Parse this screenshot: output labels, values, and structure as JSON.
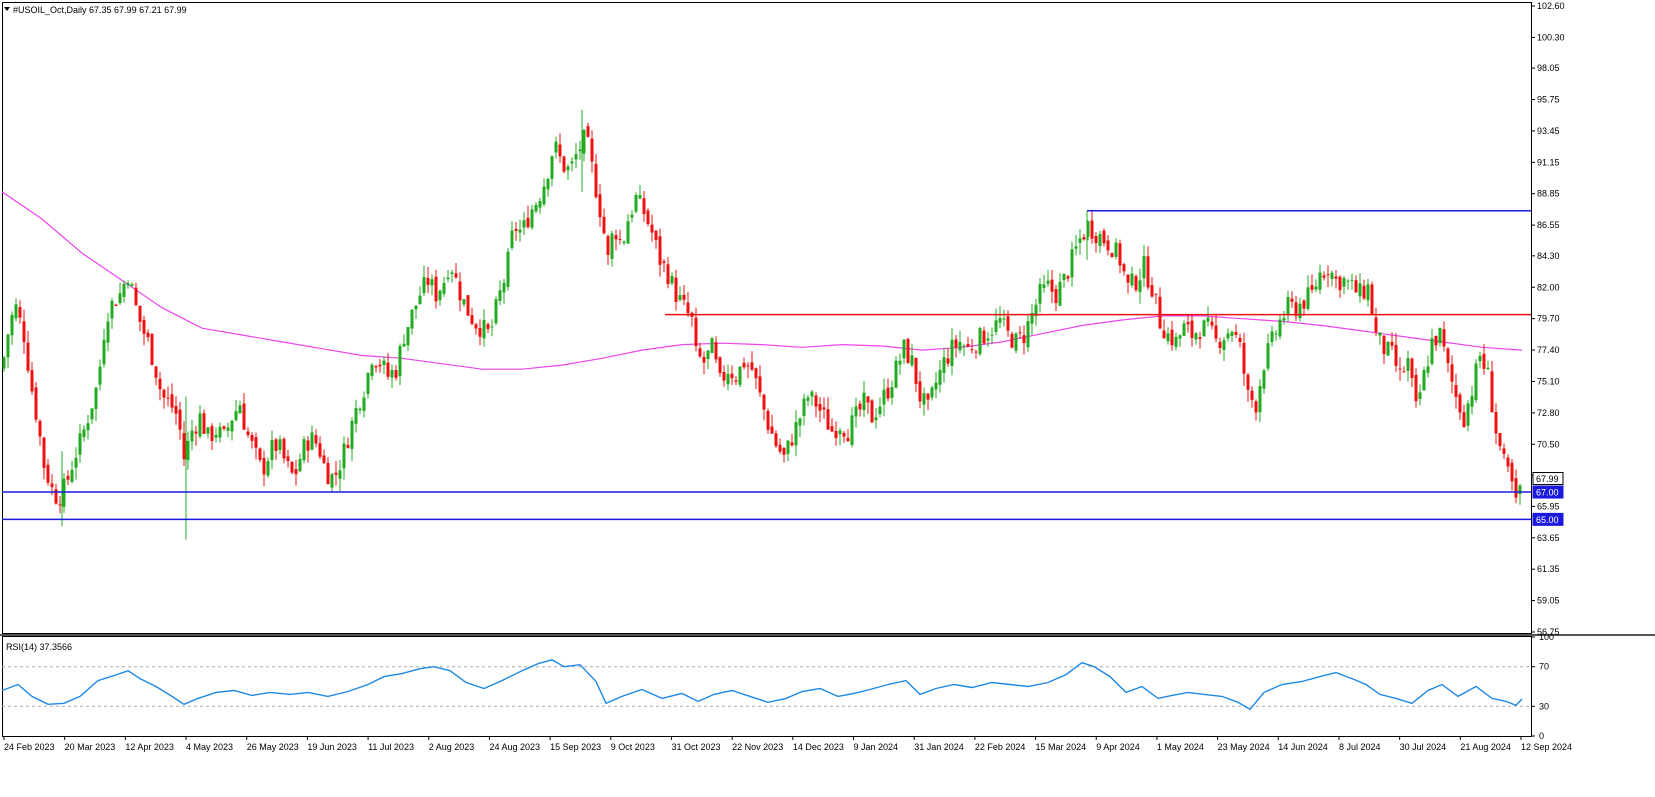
{
  "header": {
    "title": "#USOIL_Oct,Daily  67.35 67.99 67.21 67.99"
  },
  "rsi_header": {
    "title": "RSI(14) 37.3566"
  },
  "colors": {
    "up": "#22aa22",
    "down": "#ee1111",
    "ma": "#ee44ee",
    "blue_line": "#1a1adf",
    "red_line": "#ee1111",
    "rsi": "#1e88e5"
  },
  "chart_data": {
    "type": "candlestick",
    "symbol": "#USOIL_Oct",
    "timeframe": "Daily",
    "ohlc_last": {
      "open": 67.35,
      "high": 67.99,
      "low": 67.21,
      "close": 67.99
    },
    "ylim": [
      56.75,
      102.6
    ],
    "y_ticks": [
      "102.60",
      "100.30",
      "98.05",
      "95.75",
      "93.45",
      "91.15",
      "88.85",
      "86.55",
      "84.30",
      "82.00",
      "79.70",
      "77.40",
      "75.10",
      "72.80",
      "70.50",
      "68.20",
      "65.95",
      "63.65",
      "61.35",
      "59.05",
      "56.75"
    ],
    "x_ticks": [
      "24 Feb 2023",
      "20 Mar 2023",
      "12 Apr 2023",
      "4 May 2023",
      "26 May 2023",
      "19 Jun 2023",
      "11 Jul 2023",
      "2 Aug 2023",
      "24 Aug 2023",
      "15 Sep 2023",
      "9 Oct 2023",
      "31 Oct 2023",
      "22 Nov 2023",
      "14 Dec 2023",
      "9 Jan 2024",
      "31 Jan 2024",
      "22 Feb 2024",
      "15 Mar 2024",
      "9 Apr 2024",
      "1 May 2024",
      "23 May 2024",
      "14 Jun 2024",
      "8 Jul 2024",
      "30 Jul 2024",
      "21 Aug 2024",
      "12 Sep 2024"
    ],
    "price_path": [
      [
        0,
        76.0
      ],
      [
        8,
        79.5
      ],
      [
        14,
        80.5
      ],
      [
        22,
        78.5
      ],
      [
        30,
        74.5
      ],
      [
        36,
        72.0
      ],
      [
        42,
        69.0
      ],
      [
        50,
        67.2
      ],
      [
        56,
        66.5
      ],
      [
        64,
        67.5
      ],
      [
        72,
        69.5
      ],
      [
        80,
        71.0
      ],
      [
        88,
        73.0
      ],
      [
        96,
        75.0
      ],
      [
        104,
        80.0
      ],
      [
        112,
        81.0
      ],
      [
        118,
        81.5
      ],
      [
        126,
        83.0
      ],
      [
        134,
        80.5
      ],
      [
        140,
        79.0
      ],
      [
        146,
        78.0
      ],
      [
        152,
        76.5
      ],
      [
        160,
        74.0
      ],
      [
        168,
        73.5
      ],
      [
        176,
        72.5
      ],
      [
        182,
        69.5
      ],
      [
        190,
        71.5
      ],
      [
        198,
        72.5
      ],
      [
        206,
        71.0
      ],
      [
        214,
        71.5
      ],
      [
        222,
        71.0
      ],
      [
        230,
        72.5
      ],
      [
        238,
        73.5
      ],
      [
        244,
        71.5
      ],
      [
        252,
        70.0
      ],
      [
        260,
        68.5
      ],
      [
        268,
        70.0
      ],
      [
        276,
        70.5
      ],
      [
        284,
        69.0
      ],
      [
        292,
        68.0
      ],
      [
        300,
        70.0
      ],
      [
        308,
        71.0
      ],
      [
        316,
        70.5
      ],
      [
        324,
        68.5
      ],
      [
        332,
        68.0
      ],
      [
        340,
        69.5
      ],
      [
        348,
        71.5
      ],
      [
        356,
        73.5
      ],
      [
        364,
        75.0
      ],
      [
        370,
        77.0
      ],
      [
        378,
        76.5
      ],
      [
        386,
        75.5
      ],
      [
        394,
        76.0
      ],
      [
        402,
        78.5
      ],
      [
        410,
        80.0
      ],
      [
        418,
        81.5
      ],
      [
        426,
        82.5
      ],
      [
        434,
        81.5
      ],
      [
        442,
        82.5
      ],
      [
        448,
        84.0
      ],
      [
        456,
        82.0
      ],
      [
        464,
        80.5
      ],
      [
        472,
        79.5
      ],
      [
        480,
        79.0
      ],
      [
        488,
        78.5
      ],
      [
        496,
        81.0
      ],
      [
        504,
        83.0
      ],
      [
        512,
        86.5
      ],
      [
        520,
        86.0
      ],
      [
        528,
        87.5
      ],
      [
        536,
        88.5
      ],
      [
        544,
        90.0
      ],
      [
        552,
        92.5
      ],
      [
        560,
        91.0
      ],
      [
        568,
        90.5
      ],
      [
        576,
        92.0
      ],
      [
        584,
        93.0
      ],
      [
        592,
        90.0
      ],
      [
        600,
        87.0
      ],
      [
        606,
        84.0
      ],
      [
        612,
        86.5
      ],
      [
        620,
        85.0
      ],
      [
        626,
        87.0
      ],
      [
        634,
        88.5
      ],
      [
        642,
        87.5
      ],
      [
        650,
        86.0
      ],
      [
        658,
        84.0
      ],
      [
        666,
        83.0
      ],
      [
        674,
        81.5
      ],
      [
        682,
        80.5
      ],
      [
        690,
        79.5
      ],
      [
        694,
        77.0
      ],
      [
        702,
        76.5
      ],
      [
        710,
        77.5
      ],
      [
        718,
        75.0
      ],
      [
        726,
        76.0
      ],
      [
        734,
        75.5
      ],
      [
        742,
        76.5
      ],
      [
        750,
        76.0
      ],
      [
        758,
        74.0
      ],
      [
        766,
        72.0
      ],
      [
        774,
        70.5
      ],
      [
        782,
        69.5
      ],
      [
        790,
        71.0
      ],
      [
        798,
        72.5
      ],
      [
        806,
        74.0
      ],
      [
        814,
        73.5
      ],
      [
        822,
        72.5
      ],
      [
        830,
        71.5
      ],
      [
        838,
        72.0
      ],
      [
        846,
        71.5
      ],
      [
        854,
        72.5
      ],
      [
        862,
        73.5
      ],
      [
        870,
        72.5
      ],
      [
        878,
        73.5
      ],
      [
        886,
        74.5
      ],
      [
        894,
        76.0
      ],
      [
        902,
        77.5
      ],
      [
        910,
        76.5
      ],
      [
        918,
        74.0
      ],
      [
        926,
        73.0
      ],
      [
        934,
        75.0
      ],
      [
        942,
        76.5
      ],
      [
        950,
        77.5
      ],
      [
        958,
        78.0
      ],
      [
        966,
        77.5
      ],
      [
        974,
        78.0
      ],
      [
        982,
        78.5
      ],
      [
        990,
        79.0
      ],
      [
        998,
        79.5
      ],
      [
        1006,
        78.5
      ],
      [
        1014,
        78.0
      ],
      [
        1022,
        78.5
      ],
      [
        1030,
        80.0
      ],
      [
        1038,
        81.5
      ],
      [
        1046,
        82.0
      ],
      [
        1054,
        81.5
      ],
      [
        1062,
        82.5
      ],
      [
        1070,
        84.0
      ],
      [
        1078,
        85.5
      ],
      [
        1086,
        86.5
      ],
      [
        1094,
        86.0
      ],
      [
        1102,
        85.5
      ],
      [
        1110,
        85.0
      ],
      [
        1118,
        84.0
      ],
      [
        1126,
        82.0
      ],
      [
        1134,
        82.5
      ],
      [
        1142,
        83.5
      ],
      [
        1150,
        82.0
      ],
      [
        1158,
        79.5
      ],
      [
        1166,
        78.5
      ],
      [
        1174,
        78.0
      ],
      [
        1182,
        79.0
      ],
      [
        1190,
        78.5
      ],
      [
        1198,
        79.0
      ],
      [
        1206,
        79.0
      ],
      [
        1214,
        78.0
      ],
      [
        1222,
        78.5
      ],
      [
        1230,
        79.0
      ],
      [
        1238,
        77.5
      ],
      [
        1246,
        74.0
      ],
      [
        1254,
        73.5
      ],
      [
        1262,
        76.5
      ],
      [
        1270,
        78.0
      ],
      [
        1278,
        79.5
      ],
      [
        1286,
        80.5
      ],
      [
        1294,
        80.5
      ],
      [
        1302,
        81.0
      ],
      [
        1310,
        81.5
      ],
      [
        1318,
        83.0
      ],
      [
        1326,
        83.5
      ],
      [
        1334,
        82.5
      ],
      [
        1342,
        82.5
      ],
      [
        1350,
        82.0
      ],
      [
        1358,
        81.5
      ],
      [
        1366,
        82.0
      ],
      [
        1374,
        78.5
      ],
      [
        1382,
        77.5
      ],
      [
        1390,
        77.0
      ],
      [
        1398,
        75.5
      ],
      [
        1406,
        76.5
      ],
      [
        1414,
        73.0
      ],
      [
        1422,
        75.5
      ],
      [
        1430,
        78.0
      ],
      [
        1438,
        78.5
      ],
      [
        1446,
        76.0
      ],
      [
        1454,
        74.0
      ],
      [
        1462,
        72.5
      ],
      [
        1470,
        74.5
      ],
      [
        1478,
        77.0
      ],
      [
        1486,
        75.5
      ],
      [
        1494,
        71.5
      ],
      [
        1502,
        69.0
      ],
      [
        1510,
        67.5
      ],
      [
        1514,
        66.0
      ],
      [
        1520,
        67.99
      ]
    ],
    "ma_path": [
      [
        0,
        89.0
      ],
      [
        40,
        87.0
      ],
      [
        80,
        84.5
      ],
      [
        120,
        82.5
      ],
      [
        160,
        80.5
      ],
      [
        200,
        79.0
      ],
      [
        240,
        78.5
      ],
      [
        280,
        78.0
      ],
      [
        320,
        77.5
      ],
      [
        360,
        77.0
      ],
      [
        400,
        76.8
      ],
      [
        440,
        76.4
      ],
      [
        480,
        76.0
      ],
      [
        520,
        76.0
      ],
      [
        560,
        76.3
      ],
      [
        600,
        76.8
      ],
      [
        640,
        77.4
      ],
      [
        680,
        77.8
      ],
      [
        720,
        77.9
      ],
      [
        760,
        77.8
      ],
      [
        800,
        77.6
      ],
      [
        840,
        77.8
      ],
      [
        880,
        77.7
      ],
      [
        920,
        77.4
      ],
      [
        960,
        77.6
      ],
      [
        1000,
        78.0
      ],
      [
        1040,
        78.6
      ],
      [
        1080,
        79.2
      ],
      [
        1120,
        79.6
      ],
      [
        1160,
        79.9
      ],
      [
        1200,
        79.9
      ],
      [
        1240,
        79.7
      ],
      [
        1280,
        79.5
      ],
      [
        1320,
        79.2
      ],
      [
        1360,
        78.8
      ],
      [
        1400,
        78.4
      ],
      [
        1440,
        78.0
      ],
      [
        1480,
        77.6
      ],
      [
        1520,
        77.4
      ]
    ],
    "horizontal_lines": [
      {
        "price": 87.6,
        "x_start": 1085,
        "color": "blue"
      },
      {
        "price": 80.0,
        "x_start": 663,
        "color": "red"
      },
      {
        "price": 67.0,
        "x_start": 0,
        "color": "blue",
        "label": "67.00"
      },
      {
        "price": 65.0,
        "x_start": 0,
        "color": "blue",
        "label": "65.00"
      }
    ],
    "price_labels": [
      {
        "text": "67.99",
        "price": 67.99,
        "style": "last"
      },
      {
        "text": "67.00",
        "price": 67.0,
        "style": "blue"
      },
      {
        "text": "65.00",
        "price": 65.0,
        "style": "blue"
      }
    ],
    "spikes": [
      {
        "x": 60,
        "low": 64.5,
        "high": 70.0
      },
      {
        "x": 184,
        "low": 63.5,
        "high": 74.0
      },
      {
        "x": 580,
        "low": 89.0,
        "high": 95.0
      },
      {
        "x": 1085,
        "low": 84.0,
        "high": 87.6
      }
    ],
    "rsi": {
      "period": 14,
      "value": 37.3566,
      "ylim": [
        0,
        100
      ],
      "levels": [
        30,
        70
      ],
      "ticks": [
        "100",
        "70",
        "30",
        "0"
      ],
      "path": [
        [
          0,
          46
        ],
        [
          16,
          52
        ],
        [
          30,
          40
        ],
        [
          46,
          32
        ],
        [
          62,
          33
        ],
        [
          78,
          40
        ],
        [
          96,
          56
        ],
        [
          112,
          61
        ],
        [
          126,
          66
        ],
        [
          138,
          58
        ],
        [
          154,
          50
        ],
        [
          170,
          40
        ],
        [
          182,
          32
        ],
        [
          196,
          38
        ],
        [
          214,
          44
        ],
        [
          232,
          46
        ],
        [
          250,
          41
        ],
        [
          268,
          44
        ],
        [
          288,
          42
        ],
        [
          306,
          44
        ],
        [
          326,
          40
        ],
        [
          346,
          45
        ],
        [
          366,
          52
        ],
        [
          382,
          60
        ],
        [
          400,
          63
        ],
        [
          418,
          68
        ],
        [
          432,
          70
        ],
        [
          448,
          66
        ],
        [
          464,
          54
        ],
        [
          482,
          48
        ],
        [
          500,
          56
        ],
        [
          520,
          66
        ],
        [
          536,
          73
        ],
        [
          550,
          77
        ],
        [
          562,
          70
        ],
        [
          578,
          72
        ],
        [
          594,
          55
        ],
        [
          604,
          33
        ],
        [
          620,
          40
        ],
        [
          640,
          47
        ],
        [
          660,
          38
        ],
        [
          680,
          43
        ],
        [
          696,
          35
        ],
        [
          712,
          42
        ],
        [
          730,
          46
        ],
        [
          748,
          40
        ],
        [
          766,
          34
        ],
        [
          784,
          38
        ],
        [
          800,
          45
        ],
        [
          818,
          48
        ],
        [
          836,
          40
        ],
        [
          852,
          43
        ],
        [
          868,
          47
        ],
        [
          886,
          52
        ],
        [
          904,
          56
        ],
        [
          918,
          42
        ],
        [
          934,
          48
        ],
        [
          952,
          52
        ],
        [
          970,
          49
        ],
        [
          990,
          54
        ],
        [
          1008,
          52
        ],
        [
          1026,
          50
        ],
        [
          1046,
          54
        ],
        [
          1064,
          62
        ],
        [
          1080,
          74
        ],
        [
          1092,
          70
        ],
        [
          1108,
          60
        ],
        [
          1124,
          44
        ],
        [
          1140,
          50
        ],
        [
          1156,
          38
        ],
        [
          1170,
          41
        ],
        [
          1186,
          44
        ],
        [
          1202,
          42
        ],
        [
          1220,
          40
        ],
        [
          1236,
          34
        ],
        [
          1248,
          27
        ],
        [
          1262,
          44
        ],
        [
          1280,
          52
        ],
        [
          1300,
          55
        ],
        [
          1318,
          60
        ],
        [
          1334,
          64
        ],
        [
          1350,
          58
        ],
        [
          1364,
          52
        ],
        [
          1378,
          42
        ],
        [
          1394,
          38
        ],
        [
          1410,
          33
        ],
        [
          1426,
          46
        ],
        [
          1440,
          52
        ],
        [
          1456,
          40
        ],
        [
          1474,
          50
        ],
        [
          1490,
          38
        ],
        [
          1504,
          35
        ],
        [
          1514,
          31
        ],
        [
          1520,
          37.36
        ]
      ]
    },
    "candle_spacing": 4,
    "title": "",
    "xlabel": "",
    "ylabel": ""
  }
}
